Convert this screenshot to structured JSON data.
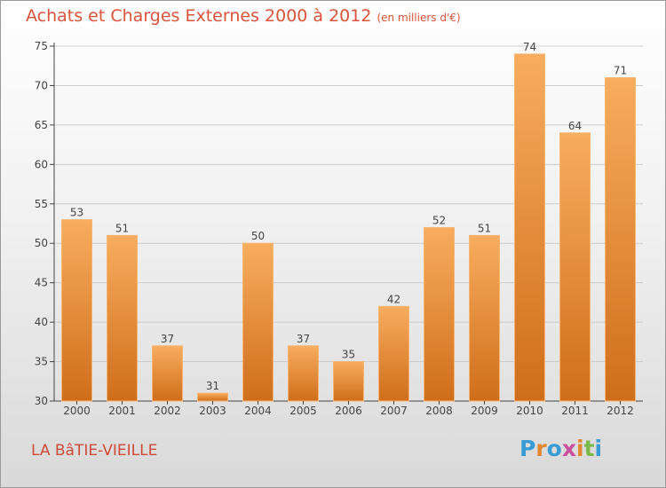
{
  "title": "Achats et Charges Externes 2000 à 2012",
  "subtitle": "(en milliers d'€)",
  "commune": "LA BâTIE-VIEILLE",
  "brand": {
    "text": "Proxiti",
    "letters": [
      "P",
      "r",
      "o",
      "x",
      "i",
      "t",
      "i"
    ],
    "colors": [
      "#3a9bd5",
      "#e2862f",
      "#3a9bd5",
      "#c94f9f",
      "#e2862f",
      "#7cb84a",
      "#3a9bd5"
    ]
  },
  "colors": {
    "bar_top": "#f8ad5e",
    "bar_bottom": "#cf6e1a",
    "title": "#d9543a",
    "axis": "#444444",
    "grid": "#cccccc"
  },
  "chart_data": {
    "type": "bar",
    "categories": [
      "2000",
      "2001",
      "2002",
      "2003",
      "2004",
      "2005",
      "2006",
      "2007",
      "2008",
      "2009",
      "2010",
      "2011",
      "2012"
    ],
    "values": [
      53,
      51,
      37,
      31,
      50,
      37,
      35,
      42,
      52,
      51,
      74,
      64,
      71
    ],
    "yticks": [
      30,
      35,
      40,
      45,
      50,
      55,
      60,
      65,
      70,
      75
    ],
    "ylim": [
      30,
      75
    ],
    "grid": true,
    "legend": "none"
  }
}
